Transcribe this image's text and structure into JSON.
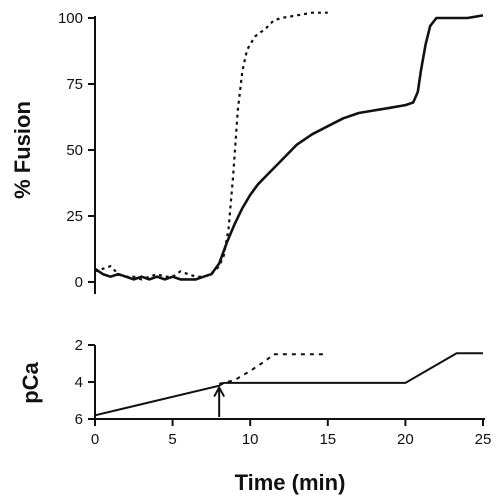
{
  "chart_data": [
    {
      "type": "line",
      "xlabel": "",
      "ylabel": "% Fusion",
      "xlim": [
        0,
        25
      ],
      "ylim": [
        0,
        100
      ],
      "yticks": [
        0,
        25,
        50,
        75,
        100
      ],
      "ytick_labels": [
        "0",
        "25",
        "50",
        "75",
        "100"
      ],
      "grid": false,
      "series": [
        {
          "style": "dotted",
          "points": [
            [
              0,
              4
            ],
            [
              0.5,
              5
            ],
            [
              1,
              6
            ],
            [
              1.5,
              3
            ],
            [
              2,
              2
            ],
            [
              2.5,
              2
            ],
            [
              3,
              1
            ],
            [
              3.5,
              2
            ],
            [
              4,
              3
            ],
            [
              4.5,
              2
            ],
            [
              5,
              2
            ],
            [
              5.5,
              4
            ],
            [
              6,
              3
            ],
            [
              6.5,
              2
            ],
            [
              7,
              2
            ],
            [
              7.5,
              3
            ],
            [
              8,
              6
            ],
            [
              8.3,
              10
            ],
            [
              8.6,
              20
            ],
            [
              8.9,
              40
            ],
            [
              9.2,
              65
            ],
            [
              9.5,
              80
            ],
            [
              9.8,
              88
            ],
            [
              10.3,
              93
            ],
            [
              11,
              96
            ],
            [
              11.5,
              99
            ],
            [
              12,
              100
            ],
            [
              13,
              101
            ],
            [
              14,
              102
            ],
            [
              15,
              102
            ]
          ]
        },
        {
          "style": "solid",
          "points": [
            [
              0,
              5
            ],
            [
              0.5,
              3
            ],
            [
              1,
              2
            ],
            [
              1.5,
              3
            ],
            [
              2,
              2
            ],
            [
              2.5,
              1
            ],
            [
              3,
              2
            ],
            [
              3.5,
              1
            ],
            [
              4,
              2
            ],
            [
              4.5,
              1
            ],
            [
              5,
              2
            ],
            [
              5.5,
              1
            ],
            [
              6,
              1
            ],
            [
              6.5,
              1
            ],
            [
              7,
              2
            ],
            [
              7.5,
              3
            ],
            [
              8,
              7
            ],
            [
              8.5,
              15
            ],
            [
              9,
              22
            ],
            [
              9.5,
              28
            ],
            [
              10,
              33
            ],
            [
              10.5,
              37
            ],
            [
              11,
              40
            ],
            [
              12,
              46
            ],
            [
              13,
              52
            ],
            [
              14,
              56
            ],
            [
              15,
              59
            ],
            [
              16,
              62
            ],
            [
              17,
              64
            ],
            [
              18,
              65
            ],
            [
              19,
              66
            ],
            [
              20,
              67
            ],
            [
              20.5,
              68
            ],
            [
              20.8,
              72
            ],
            [
              21,
              80
            ],
            [
              21.3,
              90
            ],
            [
              21.6,
              97
            ],
            [
              22,
              100
            ],
            [
              23,
              100
            ],
            [
              24,
              100
            ],
            [
              25,
              101
            ]
          ]
        }
      ]
    },
    {
      "type": "line",
      "xlabel": "Time (min)",
      "ylabel": "pCa",
      "xlim": [
        0,
        25
      ],
      "ylim": [
        6,
        2
      ],
      "xticks": [
        0,
        5,
        10,
        15,
        20,
        25
      ],
      "xtick_labels": [
        "0",
        "5",
        "10",
        "15",
        "20",
        "25"
      ],
      "yticks": [
        2,
        4,
        6
      ],
      "ytick_labels": [
        "2",
        "4",
        "6"
      ],
      "grid": false,
      "series": [
        {
          "style": "dotted",
          "points": [
            [
              8,
              4.1
            ],
            [
              9,
              3.9
            ],
            [
              10,
              3.4
            ],
            [
              11,
              2.85
            ],
            [
              11.5,
              2.5
            ],
            [
              15,
              2.5
            ]
          ]
        },
        {
          "style": "solid",
          "points": [
            [
              0,
              5.8
            ],
            [
              8,
              4.2
            ],
            [
              8.3,
              4.05
            ],
            [
              20,
              4.05
            ],
            [
              23.3,
              2.45
            ],
            [
              25,
              2.45
            ]
          ]
        }
      ],
      "arrow": {
        "x": 8,
        "y_from": 6,
        "y_to": 4.3
      }
    }
  ]
}
